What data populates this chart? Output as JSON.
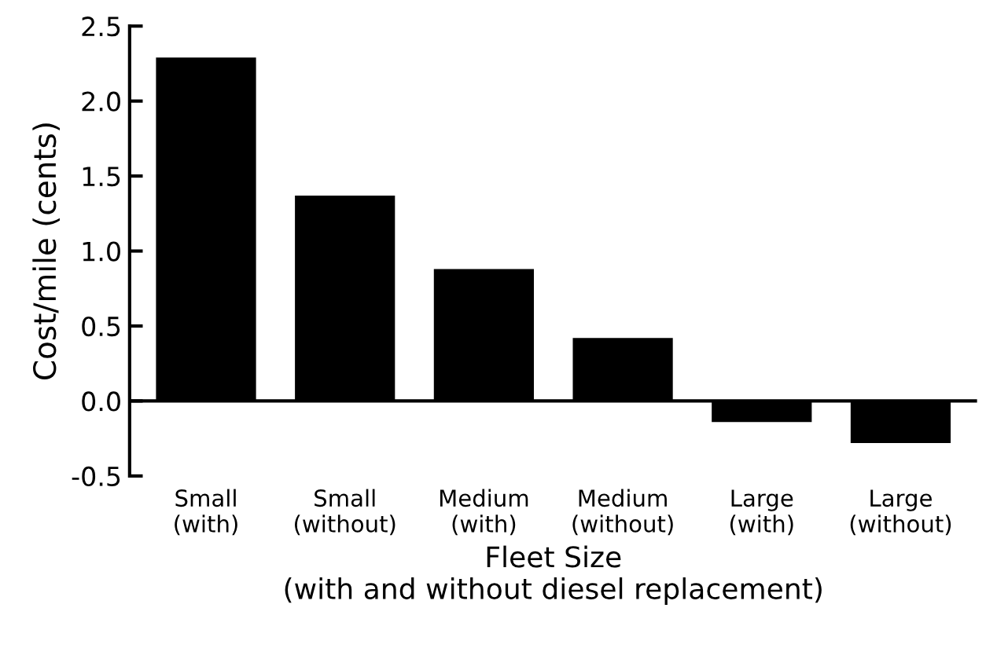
{
  "chart_data": {
    "type": "bar",
    "categories": [
      "Small\n(with)",
      "Small\n(without)",
      "Medium\n(with)",
      "Medium\n(without)",
      "Large\n(with)",
      "Large\n(without)"
    ],
    "values": [
      2.29,
      1.37,
      0.88,
      0.42,
      -0.14,
      -0.28
    ],
    "color": "#000000",
    "xlabel": "Fleet Size\n(with and without diesel replacement)",
    "ylabel": "Cost/mile (cents)",
    "ylim": [
      -0.5,
      2.5
    ],
    "yticks": [
      {
        "value": -0.5,
        "label": "-0.5"
      },
      {
        "value": 0,
        "label": "0.0"
      },
      {
        "value": 0.5,
        "label": "0.5"
      },
      {
        "value": 1,
        "label": "1.0"
      },
      {
        "value": 1.5,
        "label": "1.5"
      },
      {
        "value": 2,
        "label": "2.0"
      },
      {
        "value": 2.5,
        "label": "2.5"
      }
    ]
  }
}
